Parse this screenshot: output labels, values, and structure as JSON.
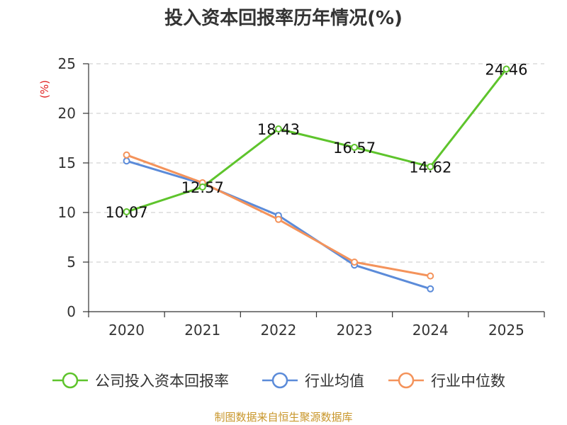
{
  "chart_data": {
    "type": "line",
    "title": "投入资本回报率历年情况(%)",
    "ylabel": "(%)",
    "xlabel": "",
    "categories": [
      "2020",
      "2021",
      "2022",
      "2023",
      "2024",
      "2025"
    ],
    "ylim": [
      0,
      25
    ],
    "yticks": [
      0,
      5,
      10,
      15,
      20,
      25
    ],
    "grid": "horizontal-dashed",
    "legend_position": "bottom",
    "series": [
      {
        "name": "公司投入资本回报率",
        "color": "#5ec42c",
        "values": [
          10.07,
          12.57,
          18.43,
          16.57,
          14.62,
          24.46
        ],
        "labels": [
          "10.07",
          "12.57",
          "18.43",
          "16.57",
          "14.62",
          "24.46"
        ]
      },
      {
        "name": "行业均值",
        "color": "#5b8bd9",
        "values": [
          15.2,
          12.9,
          9.7,
          4.7,
          2.3,
          null
        ]
      },
      {
        "name": "行业中位数",
        "color": "#f4935b",
        "values": [
          15.8,
          13.0,
          9.3,
          5.0,
          3.6,
          null
        ]
      }
    ],
    "source": "制图数据来自恒生聚源数据库"
  }
}
